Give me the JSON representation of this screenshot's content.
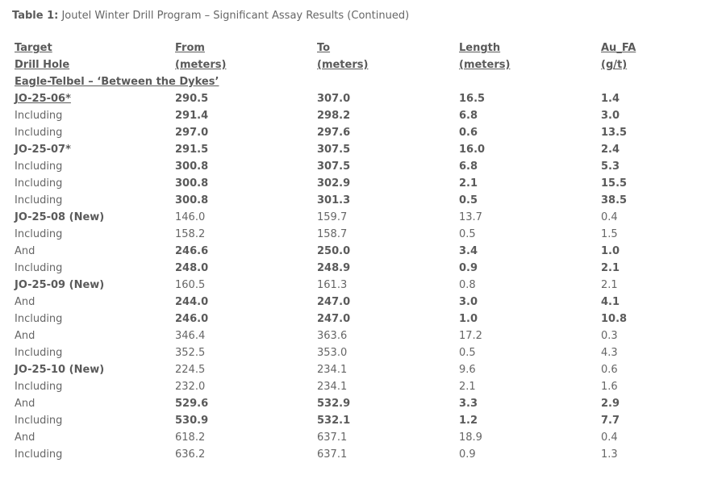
{
  "table": {
    "label": "Table 1:",
    "title": "Joutel Winter Drill Program – Significant Assay Results (Continued)",
    "headers": [
      [
        "Target",
        "Drill Hole"
      ],
      [
        "From",
        "(meters)"
      ],
      [
        "To",
        "(meters)"
      ],
      [
        "Length",
        "(meters)"
      ],
      [
        "Au_FA",
        "(g/t)"
      ]
    ],
    "section": "Eagle-Telbel – ‘Between the Dykes’",
    "rows": [
      [
        "JO-25-06*",
        "290.5",
        "307.0",
        "16.5",
        "1.4"
      ],
      [
        "Including",
        "291.4",
        "298.2",
        "6.8",
        "3.0"
      ],
      [
        "Including",
        "297.0",
        "297.6",
        "0.6",
        "13.5"
      ],
      [
        "JO-25-07*",
        "291.5",
        "307.5",
        "16.0",
        "2.4"
      ],
      [
        "Including",
        "300.8",
        "307.5",
        "6.8",
        "5.3"
      ],
      [
        "Including",
        "300.8",
        "302.9",
        "2.1",
        "15.5"
      ],
      [
        "Including",
        "300.8",
        "301.3",
        "0.5",
        "38.5"
      ],
      [
        "JO-25-08 (New)",
        "146.0",
        "159.7",
        "13.7",
        "0.4"
      ],
      [
        "Including",
        "158.2",
        "158.7",
        "0.5",
        "1.5"
      ],
      [
        "And",
        "246.6",
        "250.0",
        "3.4",
        "1.0"
      ],
      [
        "Including",
        "248.0",
        "248.9",
        "0.9",
        "2.1"
      ],
      [
        "JO-25-09 (New)",
        "160.5",
        "161.3",
        "0.8",
        "2.1"
      ],
      [
        "And",
        "244.0",
        "247.0",
        "3.0",
        "4.1"
      ],
      [
        "Including",
        "246.0",
        "247.0",
        "1.0",
        "10.8"
      ],
      [
        "And",
        "346.4",
        "363.6",
        "17.2",
        "0.3"
      ],
      [
        "Including",
        "352.5",
        "353.0",
        "0.5",
        "4.3"
      ],
      [
        "JO-25-10 (New)",
        "224.5",
        "234.1",
        "9.6",
        "0.6"
      ],
      [
        "Including",
        "232.0",
        "234.1",
        "2.1",
        "1.6"
      ],
      [
        "And",
        "529.6",
        "532.9",
        "3.3",
        "2.9"
      ],
      [
        "Including",
        "530.9",
        "532.1",
        "1.2",
        "7.7"
      ],
      [
        "And",
        "618.2",
        "637.1",
        "18.9",
        "0.4"
      ],
      [
        "Including",
        "636.2",
        "637.1",
        "0.9",
        "1.3"
      ]
    ]
  }
}
